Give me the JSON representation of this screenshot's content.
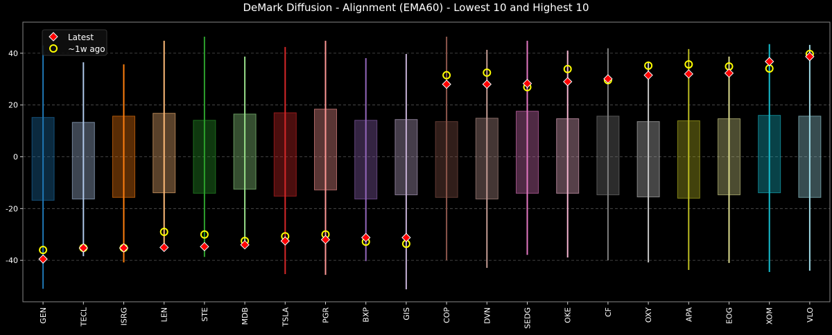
{
  "chart_data": {
    "type": "box-range",
    "title": "DeMark Diffusion - Alignment (EMA60) - Lowest 10 and Highest 10",
    "xlabel": "",
    "ylabel": "",
    "ylim": [
      -56,
      52
    ],
    "yticks": [
      -40,
      -20,
      0,
      20,
      40
    ],
    "grid": "horizontal dashed",
    "legend": {
      "position": "top-left",
      "entries": [
        "Latest",
        "~1w ago"
      ]
    },
    "categories": [
      "GEN",
      "TECL",
      "ISRG",
      "LEN",
      "STE",
      "MDB",
      "TSLA",
      "PGR",
      "BXP",
      "GIS",
      "COP",
      "DVN",
      "SEDG",
      "OKE",
      "CF",
      "OXY",
      "APA",
      "EOG",
      "XOM",
      "VLO"
    ],
    "colors": [
      "#1f77b4",
      "#aec7e8",
      "#ff7f0e",
      "#ffbb78",
      "#2ca02c",
      "#98df8a",
      "#d62728",
      "#ff9896",
      "#9467bd",
      "#c5b0d5",
      "#8c564b",
      "#c49c94",
      "#e377c2",
      "#f7b6d2",
      "#7f7f7f",
      "#c7c7c7",
      "#bcbd22",
      "#dbdb8d",
      "#17becf",
      "#9edae5"
    ],
    "whisker_max": [
      43,
      36.5,
      35.7,
      44.8,
      46.4,
      38.7,
      42.4,
      44.8,
      38.1,
      39.7,
      46.4,
      41.3,
      44.8,
      41,
      41.9,
      36.8,
      41.6,
      38.7,
      43.5,
      43.2
    ],
    "whisker_min": [
      -51,
      -38.4,
      -40.8,
      -35,
      -38.7,
      -33.6,
      -45.3,
      -45.6,
      -40.3,
      -51.2,
      -40,
      -42.9,
      -37.9,
      -38.9,
      -40,
      -40.8,
      -43.7,
      -41,
      -44.5,
      -44
    ],
    "box_high": [
      15.2,
      13.3,
      15.7,
      16.8,
      14.1,
      16.5,
      17,
      18.4,
      14.1,
      14.4,
      13.6,
      14.9,
      17.6,
      14.7,
      15.7,
      13.6,
      13.9,
      14.7,
      16,
      15.7
    ],
    "box_low": [
      -16.8,
      -16.3,
      -15.7,
      -13.9,
      -14.1,
      -12.5,
      -15.2,
      -12.8,
      -16.3,
      -14.7,
      -15.7,
      -16.3,
      -14.1,
      -14.1,
      -14.7,
      -15.5,
      -16,
      -14.7,
      -13.9,
      -15.7
    ],
    "series": [
      {
        "name": "Latest",
        "marker": "diamond",
        "color": "#ff0000",
        "values": [
          -39.5,
          -35.2,
          -35.2,
          -35,
          -34.7,
          -34,
          -32.5,
          -32,
          -31.2,
          -31.2,
          28,
          28,
          28.3,
          29,
          30.1,
          31.5,
          32,
          32.3,
          36.8,
          38.7
        ]
      },
      {
        "name": "~1w ago",
        "marker": "circle",
        "color": "#ffff00",
        "values": [
          -36,
          -35.2,
          -35.2,
          -29,
          -30,
          -32.5,
          -30.7,
          -30,
          -32.8,
          -33.6,
          31.5,
          32.5,
          26.9,
          33.9,
          29.6,
          35.2,
          35.7,
          34.9,
          34.1,
          39.7
        ]
      }
    ]
  }
}
